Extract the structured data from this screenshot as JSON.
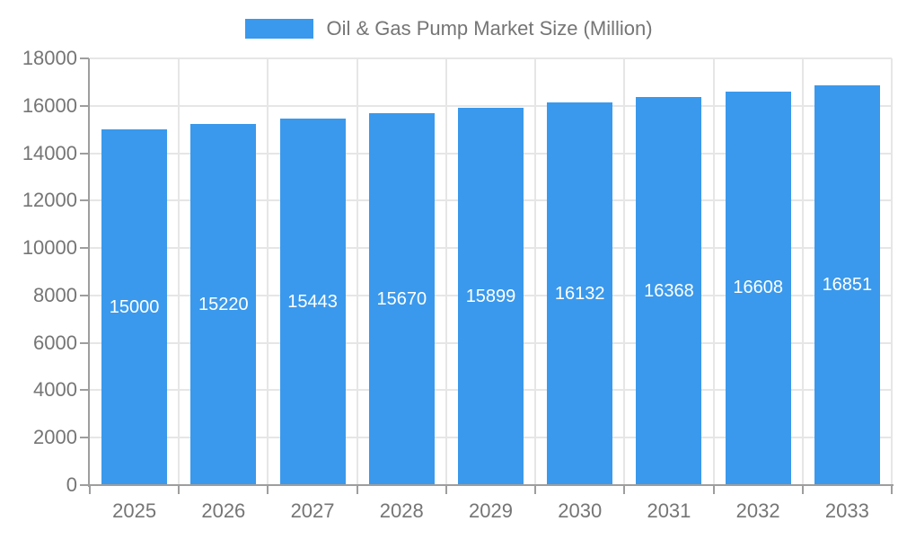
{
  "legend": {
    "label": "Oil & Gas Pump Market Size (Million)"
  },
  "chart_data": {
    "type": "bar",
    "title": "Oil & Gas Pump Market Size (Million)",
    "series_name": "Oil & Gas Pump Market Size (Million)",
    "categories": [
      "2025",
      "2026",
      "2027",
      "2028",
      "2029",
      "2030",
      "2031",
      "2032",
      "2033"
    ],
    "values": [
      15000,
      15220,
      15443,
      15670,
      15899,
      16132,
      16368,
      16608,
      16851
    ],
    "xlabel": "",
    "ylabel": "",
    "ylim": [
      0,
      18000
    ],
    "ytick_step": 2000,
    "yticks": [
      0,
      2000,
      4000,
      6000,
      8000,
      10000,
      12000,
      14000,
      16000,
      18000
    ],
    "grid": true,
    "legend_position": "top-center",
    "bar_labels_inside": true,
    "colors": {
      "bar": "#3A99EC",
      "axis": "#9E9E9E",
      "grid": "#E6E6E6",
      "tick_text": "#757575",
      "legend_text": "#757575",
      "bar_label_text": "#FFFFFF",
      "background": "#FFFFFF"
    }
  }
}
